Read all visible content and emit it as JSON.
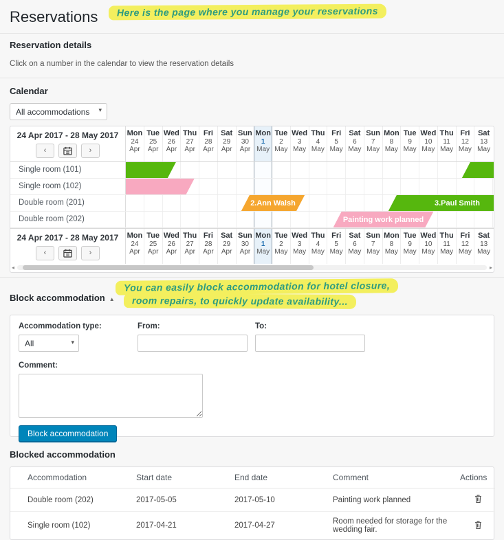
{
  "page": {
    "title": "Reservations"
  },
  "annotations": {
    "top": "Here is the page where you manage your reservations",
    "block_line1": "You can easily block accommodation for hotel closure,",
    "block_line2": "room repairs, to quickly update availability..."
  },
  "reservation_details": {
    "heading": "Reservation details",
    "hint": "Click on a number in the calendar to view the reservation details"
  },
  "calendar": {
    "heading": "Calendar",
    "filter_value": "All accommodations",
    "range_label": "24 Apr 2017 - 28 May 2017",
    "nav": {
      "prev": "‹",
      "next": "›"
    },
    "days": [
      {
        "dow": "Mon",
        "num": "24",
        "mon": "Apr"
      },
      {
        "dow": "Tue",
        "num": "25",
        "mon": "Apr"
      },
      {
        "dow": "Wed",
        "num": "26",
        "mon": "Apr"
      },
      {
        "dow": "Thu",
        "num": "27",
        "mon": "Apr"
      },
      {
        "dow": "Fri",
        "num": "28",
        "mon": "Apr"
      },
      {
        "dow": "Sat",
        "num": "29",
        "mon": "Apr"
      },
      {
        "dow": "Sun",
        "num": "30",
        "mon": "Apr"
      },
      {
        "dow": "Mon",
        "num": "1",
        "mon": "May",
        "today": true
      },
      {
        "dow": "Tue",
        "num": "2",
        "mon": "May"
      },
      {
        "dow": "Wed",
        "num": "3",
        "mon": "May"
      },
      {
        "dow": "Thu",
        "num": "4",
        "mon": "May"
      },
      {
        "dow": "Fri",
        "num": "5",
        "mon": "May"
      },
      {
        "dow": "Sat",
        "num": "6",
        "mon": "May"
      },
      {
        "dow": "Sun",
        "num": "7",
        "mon": "May"
      },
      {
        "dow": "Mon",
        "num": "8",
        "mon": "May"
      },
      {
        "dow": "Tue",
        "num": "9",
        "mon": "May"
      },
      {
        "dow": "Wed",
        "num": "10",
        "mon": "May"
      },
      {
        "dow": "Thu",
        "num": "11",
        "mon": "May"
      },
      {
        "dow": "Fri",
        "num": "12",
        "mon": "May"
      },
      {
        "dow": "Sat",
        "num": "13",
        "mon": "May"
      }
    ],
    "rooms": [
      "Single room (101)",
      "Single room (102)",
      "Double room (201)",
      "Double room (202)"
    ],
    "bars": [
      {
        "room": 0,
        "label": "",
        "color": "green",
        "start": 0,
        "end": 2.5,
        "flat_start": true,
        "flat_end": false,
        "align": "center"
      },
      {
        "room": 0,
        "label": "",
        "color": "green",
        "start": 18.5,
        "end": 20,
        "flat_start": false,
        "flat_end": true,
        "align": "center"
      },
      {
        "room": 1,
        "label": "",
        "color": "pink",
        "start": 0,
        "end": 3.5,
        "flat_start": true,
        "flat_end": false,
        "align": "center"
      },
      {
        "room": 2,
        "label": "2.Ann Walsh",
        "color": "orange",
        "start": 6.5,
        "end": 9.5,
        "flat_start": false,
        "flat_end": false,
        "align": "center"
      },
      {
        "room": 2,
        "label": "3.Paul Smith",
        "color": "green",
        "start": 14.5,
        "end": 20,
        "flat_start": false,
        "flat_end": true,
        "align": "right"
      },
      {
        "room": 3,
        "label": "Painting work planned",
        "color": "pink",
        "start": 11.5,
        "end": 16.5,
        "flat_start": false,
        "flat_end": false,
        "align": "center"
      }
    ],
    "colors": {
      "green": "#56b70e",
      "pink": "#f8a9c0",
      "orange": "#f5a62f"
    }
  },
  "block_form": {
    "heading": "Block accommodation",
    "collapse_icon": "▲",
    "type_label": "Accommodation type:",
    "type_value": "All",
    "from_label": "From:",
    "to_label": "To:",
    "comment_label": "Comment:",
    "submit_label": "Block accommodation"
  },
  "blocked_table": {
    "heading": "Blocked accommodation",
    "columns": [
      "Accommodation",
      "Start date",
      "End date",
      "Comment",
      "Actions"
    ],
    "rows": [
      {
        "accommodation": "Double room (202)",
        "start": "2017-05-05",
        "end": "2017-05-10",
        "comment": "Painting work planned"
      },
      {
        "accommodation": "Single room (102)",
        "start": "2017-04-21",
        "end": "2017-04-27",
        "comment": "Room needed for storage for the wedding fair."
      }
    ]
  }
}
